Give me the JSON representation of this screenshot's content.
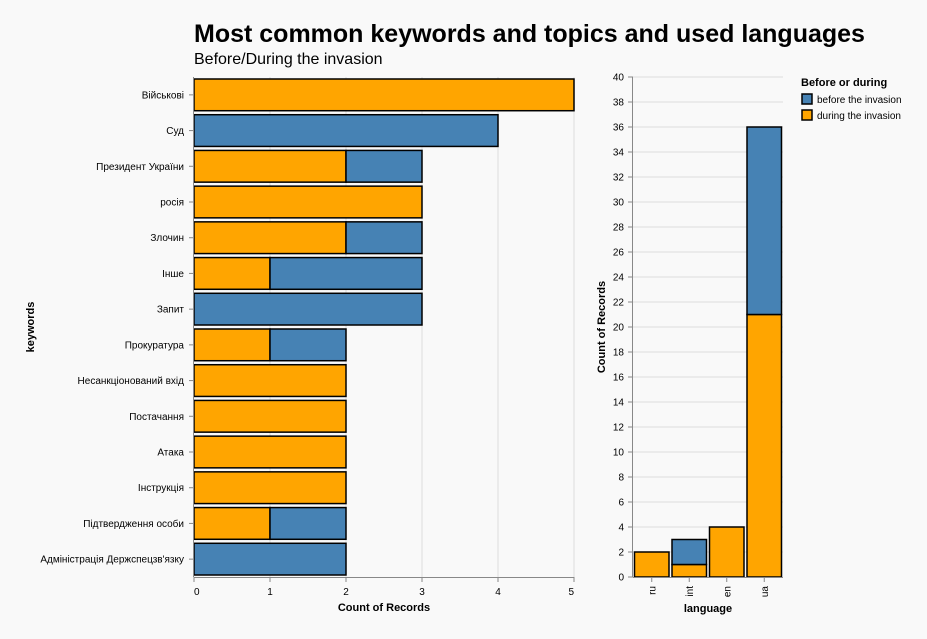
{
  "title": "Most common keywords and topics and used languages",
  "subtitle": "Before/During the invasion",
  "colors": {
    "before": "#4682b4",
    "during": "#ffa500",
    "grid": "#dddddd",
    "axis": "#888888",
    "bar_stroke": "#000000"
  },
  "legend": {
    "title": "Before or during",
    "placement": "top-right",
    "items": [
      {
        "key": "before",
        "label": "before the invasion"
      },
      {
        "key": "during",
        "label": "during the invasion"
      }
    ]
  },
  "chart_data": [
    {
      "type": "bar",
      "orientation": "horizontal",
      "stacked": true,
      "xlabel": "Count of Records",
      "ylabel": "keywords",
      "xlim": [
        0,
        5
      ],
      "x_ticks": [
        "0",
        "1",
        "2",
        "3",
        "4",
        "5"
      ],
      "grid": true,
      "categories": [
        "Військові",
        "Суд",
        "Президент України",
        "росія",
        "Злочин",
        "Інше",
        "Запит",
        "Прокуратура",
        "Несанкціонований вхід",
        "Постачання",
        "Атака",
        "Інструкція",
        "Підтвердження особи",
        "Адміністрація Держспецзв'язку"
      ],
      "series": [
        {
          "name": "during the invasion",
          "key": "during",
          "values": [
            5,
            0,
            2,
            3,
            2,
            1,
            0,
            1,
            2,
            2,
            2,
            2,
            1,
            0
          ]
        },
        {
          "name": "before the invasion",
          "key": "before",
          "values": [
            0,
            4,
            1,
            0,
            1,
            2,
            3,
            1,
            0,
            0,
            0,
            0,
            1,
            2
          ]
        }
      ]
    },
    {
      "type": "bar",
      "orientation": "vertical",
      "stacked": true,
      "xlabel": "language",
      "ylabel": "Count of Records",
      "ylim": [
        0,
        40
      ],
      "y_ticks": [
        "0",
        "2",
        "4",
        "6",
        "8",
        "10",
        "12",
        "14",
        "16",
        "18",
        "20",
        "22",
        "24",
        "26",
        "28",
        "30",
        "32",
        "34",
        "36",
        "38",
        "40"
      ],
      "grid": true,
      "categories": [
        "ru",
        "int",
        "en",
        "ua"
      ],
      "series": [
        {
          "name": "during the invasion",
          "key": "during",
          "values": [
            2,
            1,
            4,
            21
          ]
        },
        {
          "name": "before the invasion",
          "key": "before",
          "values": [
            0,
            2,
            0,
            15
          ]
        }
      ]
    }
  ]
}
